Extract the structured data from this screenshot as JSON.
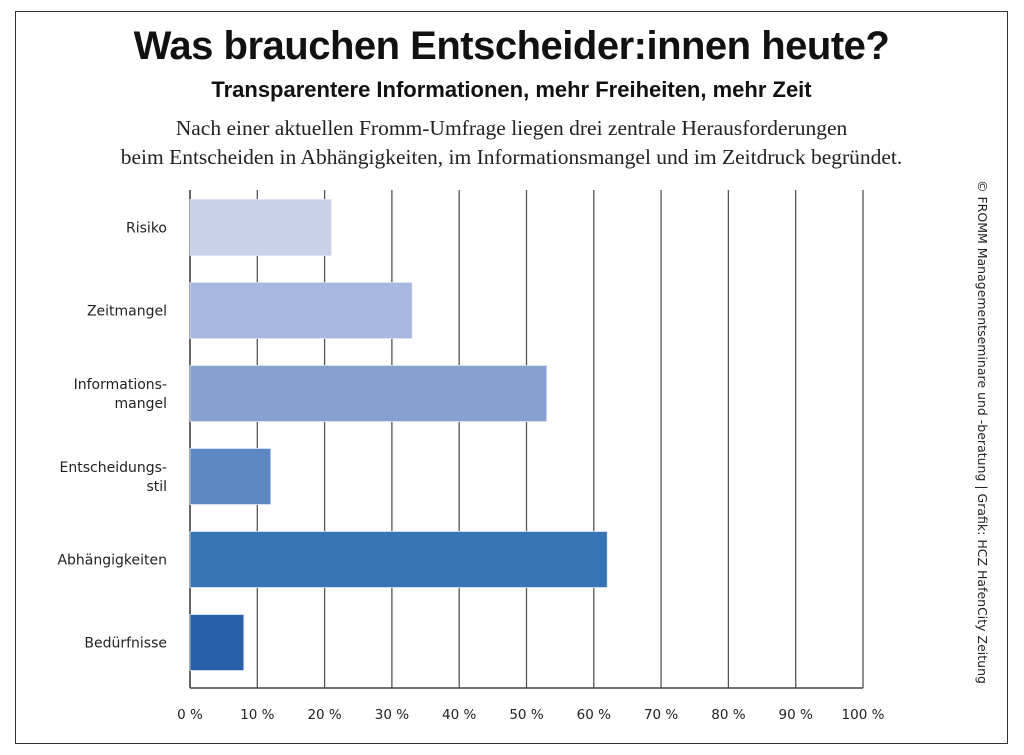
{
  "title": "Was brauchen Entscheider:innen heute?",
  "subtitle": "Transparentere Informationen, mehr Freiheiten, mehr Zeit",
  "description": [
    "Nach einer aktuellen Fromm-Umfrage liegen drei zentrale Herausforderungen",
    "beim Entscheiden in Abhängigkeiten, im Informationsmangel und im Zeitdruck begründet."
  ],
  "credit": "© FROMM Managementseminare und -beratung | Grafik: HCZ HafenCity Zeitung",
  "chart_data": {
    "type": "bar",
    "orientation": "horizontal",
    "title": "Was brauchen Entscheider:innen heute?",
    "xlabel": "",
    "ylabel": "",
    "xlim": [
      0,
      100
    ],
    "grid": true,
    "categories": [
      [
        "Risiko"
      ],
      [
        "Zeitmangel"
      ],
      [
        "Informations-",
        "mangel"
      ],
      [
        "Entscheidungs-",
        "stil"
      ],
      [
        "Abhängigkeiten"
      ],
      [
        "Bedürfnisse"
      ]
    ],
    "values": [
      21,
      33,
      53,
      12,
      62,
      8
    ],
    "colors": [
      "#c9d1ea",
      "#a9b8e0",
      "#86a0d0",
      "#5e88c2",
      "#3774b6",
      "#2960a8"
    ],
    "tick_labels": [
      "0 %",
      "10 %",
      "20 %",
      "30 %",
      "40 %",
      "50 %",
      "60 %",
      "70 %",
      "80 %",
      "90 %",
      "100 %"
    ],
    "unit": "%"
  }
}
